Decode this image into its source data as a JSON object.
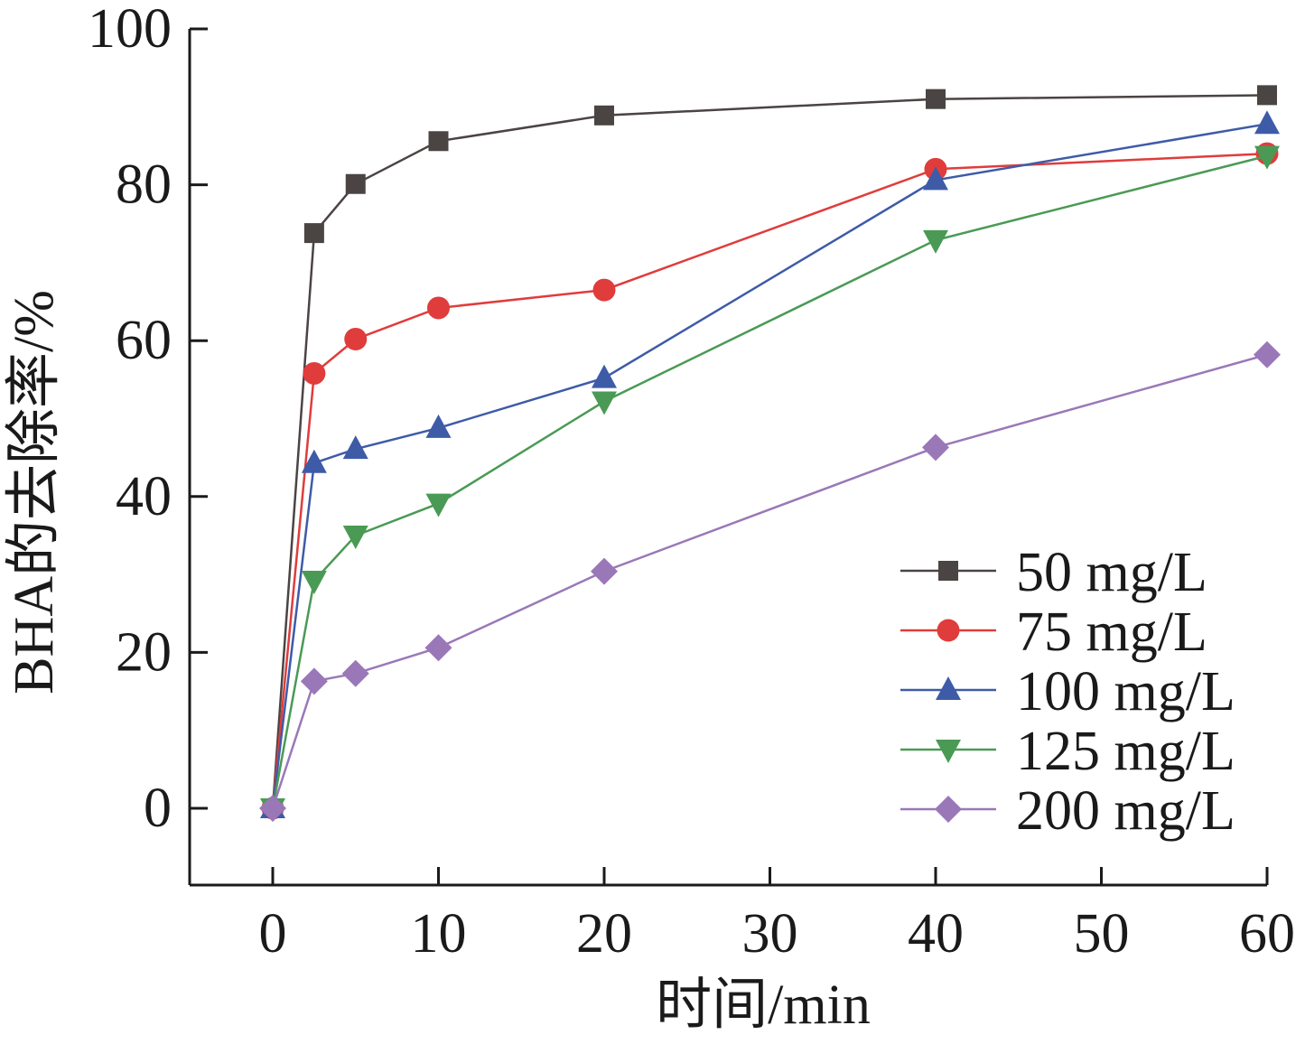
{
  "chart_data": {
    "type": "line",
    "xlabel": "时间/min",
    "ylabel": "BHA的去除率/%",
    "xlim": [
      -5,
      60
    ],
    "ylim": [
      -10,
      100
    ],
    "xticks": [
      0,
      10,
      20,
      30,
      40,
      50,
      60
    ],
    "yticks": [
      0,
      20,
      40,
      60,
      80,
      100
    ],
    "x": [
      0,
      2.5,
      5,
      10,
      20,
      40,
      60
    ],
    "legend_position": "bottom-right",
    "grid": false,
    "series": [
      {
        "name": "50 mg/L",
        "color": "#4a4443",
        "marker": "square",
        "values": [
          0,
          73.8,
          80.1,
          85.6,
          88.9,
          91.0,
          91.5
        ]
      },
      {
        "name": "75 mg/L",
        "color": "#e03c3c",
        "marker": "circle",
        "values": [
          0,
          55.8,
          60.2,
          64.2,
          66.5,
          82.0,
          84.0
        ]
      },
      {
        "name": "100 mg/L",
        "color": "#3e5ba8",
        "marker": "triangle-up",
        "values": [
          0,
          44.3,
          46.1,
          48.8,
          55.2,
          80.6,
          87.8
        ]
      },
      {
        "name": "125 mg/L",
        "color": "#4a9a55",
        "marker": "triangle-down",
        "values": [
          0,
          29.2,
          35.0,
          39.1,
          52.2,
          72.9,
          83.7
        ]
      },
      {
        "name": "200 mg/L",
        "color": "#9a78b8",
        "marker": "diamond",
        "values": [
          0,
          16.3,
          17.3,
          20.6,
          30.4,
          46.3,
          58.2
        ]
      }
    ]
  }
}
